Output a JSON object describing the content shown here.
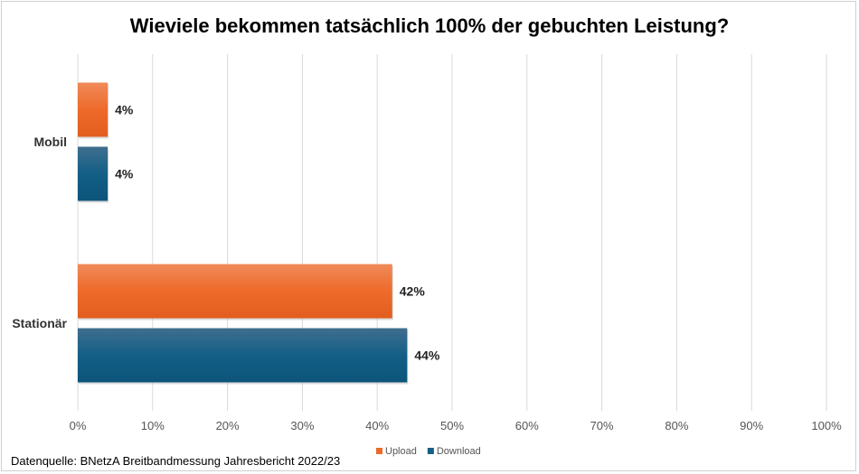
{
  "chart_data": {
    "type": "bar",
    "orientation": "horizontal",
    "title": "Wieviele bekommen tatsächlich 100% der gebuchten Leistung?",
    "categories": [
      "Mobil",
      "Stationär"
    ],
    "series": [
      {
        "name": "Upload",
        "values": [
          4,
          42
        ],
        "labels": [
          "4%",
          "42%"
        ],
        "color": "#EE6A2A"
      },
      {
        "name": "Download",
        "values": [
          4,
          44
        ],
        "labels": [
          "4%",
          "44%"
        ],
        "color": "#135F86"
      }
    ],
    "xlim": [
      0,
      100
    ],
    "xticks": [
      "0%",
      "10%",
      "20%",
      "30%",
      "40%",
      "50%",
      "60%",
      "70%",
      "80%",
      "90%",
      "100%"
    ],
    "grid": "vertical",
    "legend": "bottom",
    "source": "Datenquelle: BNetzA Breitbandmessung Jahresbericht 2022/23"
  }
}
